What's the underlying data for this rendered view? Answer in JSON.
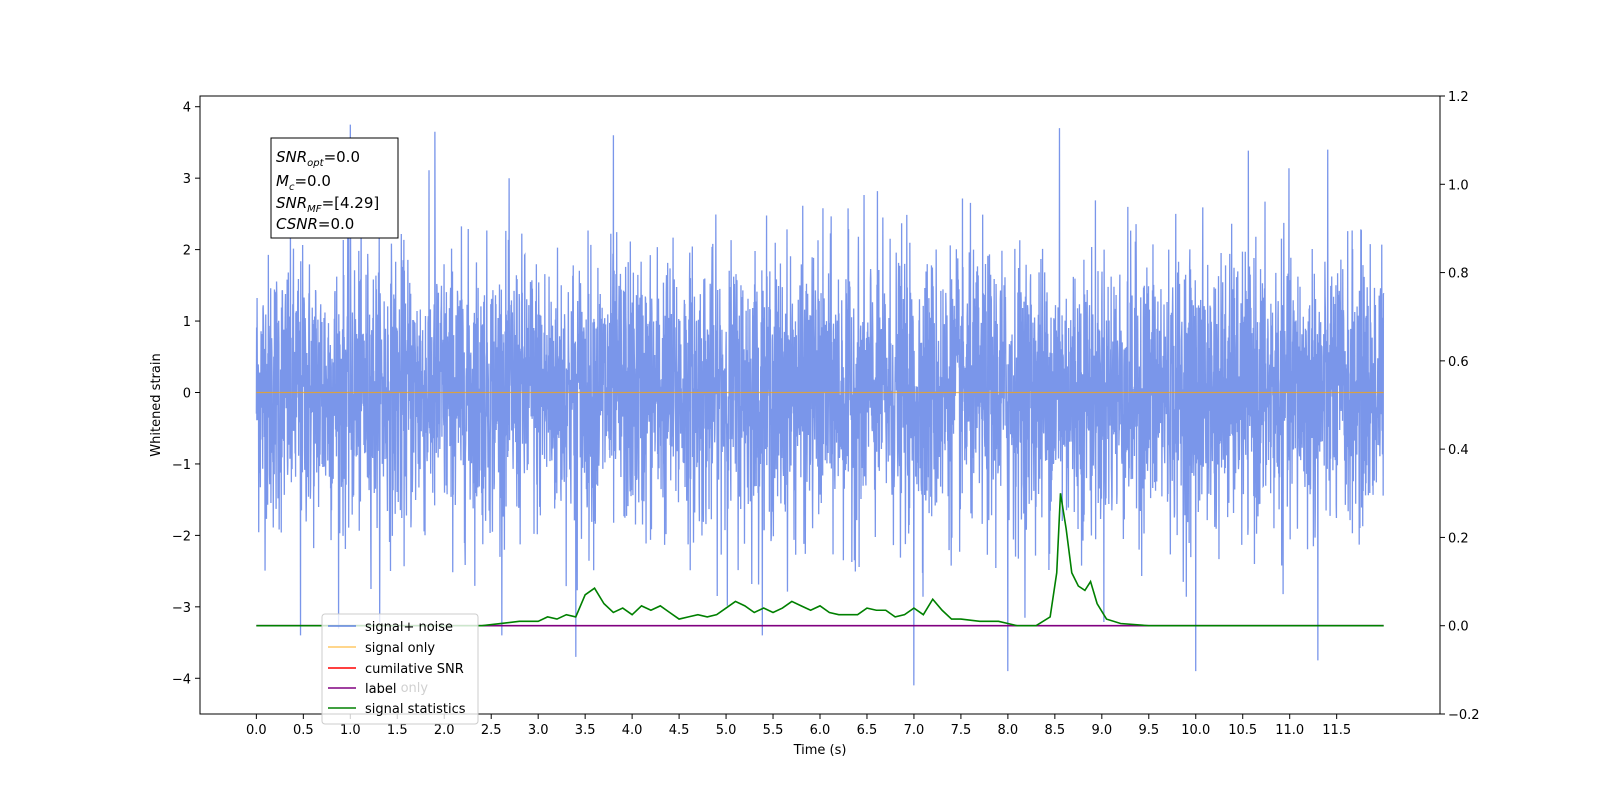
{
  "chart_data": {
    "type": "line",
    "xlabel": "Time (s)",
    "ylabel": "Whitened strain",
    "xlim": [
      -0.6,
      12.6
    ],
    "ylim": [
      -4.5,
      4.15
    ],
    "ylim_right": [
      -0.2,
      1.2
    ],
    "x_ticks": [
      "0.0",
      "0.5",
      "1.0",
      "1.5",
      "2.0",
      "2.5",
      "3.0",
      "3.5",
      "4.0",
      "4.5",
      "5.0",
      "5.5",
      "6.0",
      "6.5",
      "7.0",
      "7.5",
      "8.0",
      "8.5",
      "9.0",
      "9.5",
      "10.0",
      "10.5",
      "11.0",
      "11.5"
    ],
    "y_ticks": [
      "4",
      "3",
      "2",
      "1",
      "0",
      "−1",
      "−2",
      "−3",
      "−4"
    ],
    "y_ticks_right": [
      "1.2",
      "1.0",
      "0.8",
      "0.6",
      "0.4",
      "0.2",
      "0.0",
      "−0.2"
    ],
    "annotation": [
      {
        "base": "SNR",
        "sub": "opt",
        "rest": "=0.0"
      },
      {
        "base": "M",
        "sub": "c",
        "rest": "=0.0"
      },
      {
        "base": "SNR",
        "sub": "MF",
        "rest": "=[4.29]"
      },
      {
        "base": "CSNR",
        "sub": "",
        "rest": "=0.0"
      }
    ],
    "legend_position": "lower-left",
    "legend": [
      {
        "label": "signal+ noise",
        "color": "#4169e1"
      },
      {
        "label": "signal only",
        "color": "#ffa500"
      },
      {
        "label": "cumilative SNR",
        "color": "#ff0000"
      },
      {
        "label": "label",
        "color": "#800080"
      },
      {
        "label": "signal statistics",
        "color": "#008000"
      }
    ],
    "occluded_label": "label only",
    "series": [
      {
        "name": "signal+ noise",
        "axis": "left",
        "color": "#4169e1",
        "style": "dense noise, approximately N(0,1), ~|4| peak",
        "x_range": [
          0.0,
          12.0
        ],
        "peaks": [
          {
            "x": 0.47,
            "y": -3.4
          },
          {
            "x": 1.0,
            "y": 3.75
          },
          {
            "x": 1.9,
            "y": 3.65
          },
          {
            "x": 3.4,
            "y": -3.7
          },
          {
            "x": 3.8,
            "y": 3.6
          },
          {
            "x": 7.0,
            "y": -4.1
          },
          {
            "x": 8.0,
            "y": -3.9
          },
          {
            "x": 8.55,
            "y": 3.7
          },
          {
            "x": 10.0,
            "y": -3.9
          },
          {
            "x": 11.3,
            "y": -3.75
          }
        ]
      },
      {
        "name": "signal only",
        "axis": "left",
        "color": "#ffa500",
        "x": [
          0.0,
          12.0
        ],
        "y": [
          0.0,
          0.0
        ]
      },
      {
        "name": "label",
        "axis": "right",
        "color": "#800080",
        "x": [
          0.0,
          12.0
        ],
        "y": [
          0.0,
          0.0
        ]
      },
      {
        "name": "signal statistics",
        "axis": "right",
        "color": "#008000",
        "x": [
          0.0,
          2.4,
          2.8,
          3.0,
          3.1,
          3.2,
          3.3,
          3.4,
          3.5,
          3.6,
          3.7,
          3.8,
          3.9,
          4.0,
          4.1,
          4.2,
          4.3,
          4.4,
          4.5,
          4.6,
          4.7,
          4.8,
          4.9,
          5.0,
          5.1,
          5.2,
          5.3,
          5.4,
          5.5,
          5.6,
          5.7,
          5.8,
          5.9,
          6.0,
          6.1,
          6.2,
          6.3,
          6.4,
          6.5,
          6.6,
          6.7,
          6.8,
          6.9,
          7.0,
          7.1,
          7.2,
          7.3,
          7.4,
          7.5,
          7.7,
          7.9,
          8.0,
          8.1,
          8.3,
          8.45,
          8.52,
          8.56,
          8.62,
          8.68,
          8.75,
          8.82,
          8.88,
          8.95,
          9.05,
          9.2,
          9.5,
          12.0
        ],
        "y": [
          0.0,
          0.0,
          0.01,
          0.01,
          0.02,
          0.015,
          0.025,
          0.02,
          0.07,
          0.085,
          0.05,
          0.03,
          0.04,
          0.025,
          0.045,
          0.035,
          0.045,
          0.03,
          0.015,
          0.02,
          0.025,
          0.02,
          0.025,
          0.04,
          0.055,
          0.045,
          0.03,
          0.04,
          0.03,
          0.04,
          0.055,
          0.045,
          0.035,
          0.045,
          0.03,
          0.025,
          0.025,
          0.025,
          0.04,
          0.035,
          0.035,
          0.02,
          0.025,
          0.04,
          0.025,
          0.06,
          0.035,
          0.015,
          0.015,
          0.01,
          0.01,
          0.005,
          0.0,
          0.0,
          0.02,
          0.12,
          0.3,
          0.22,
          0.12,
          0.09,
          0.08,
          0.1,
          0.05,
          0.015,
          0.005,
          0.0,
          0.0
        ]
      }
    ]
  }
}
